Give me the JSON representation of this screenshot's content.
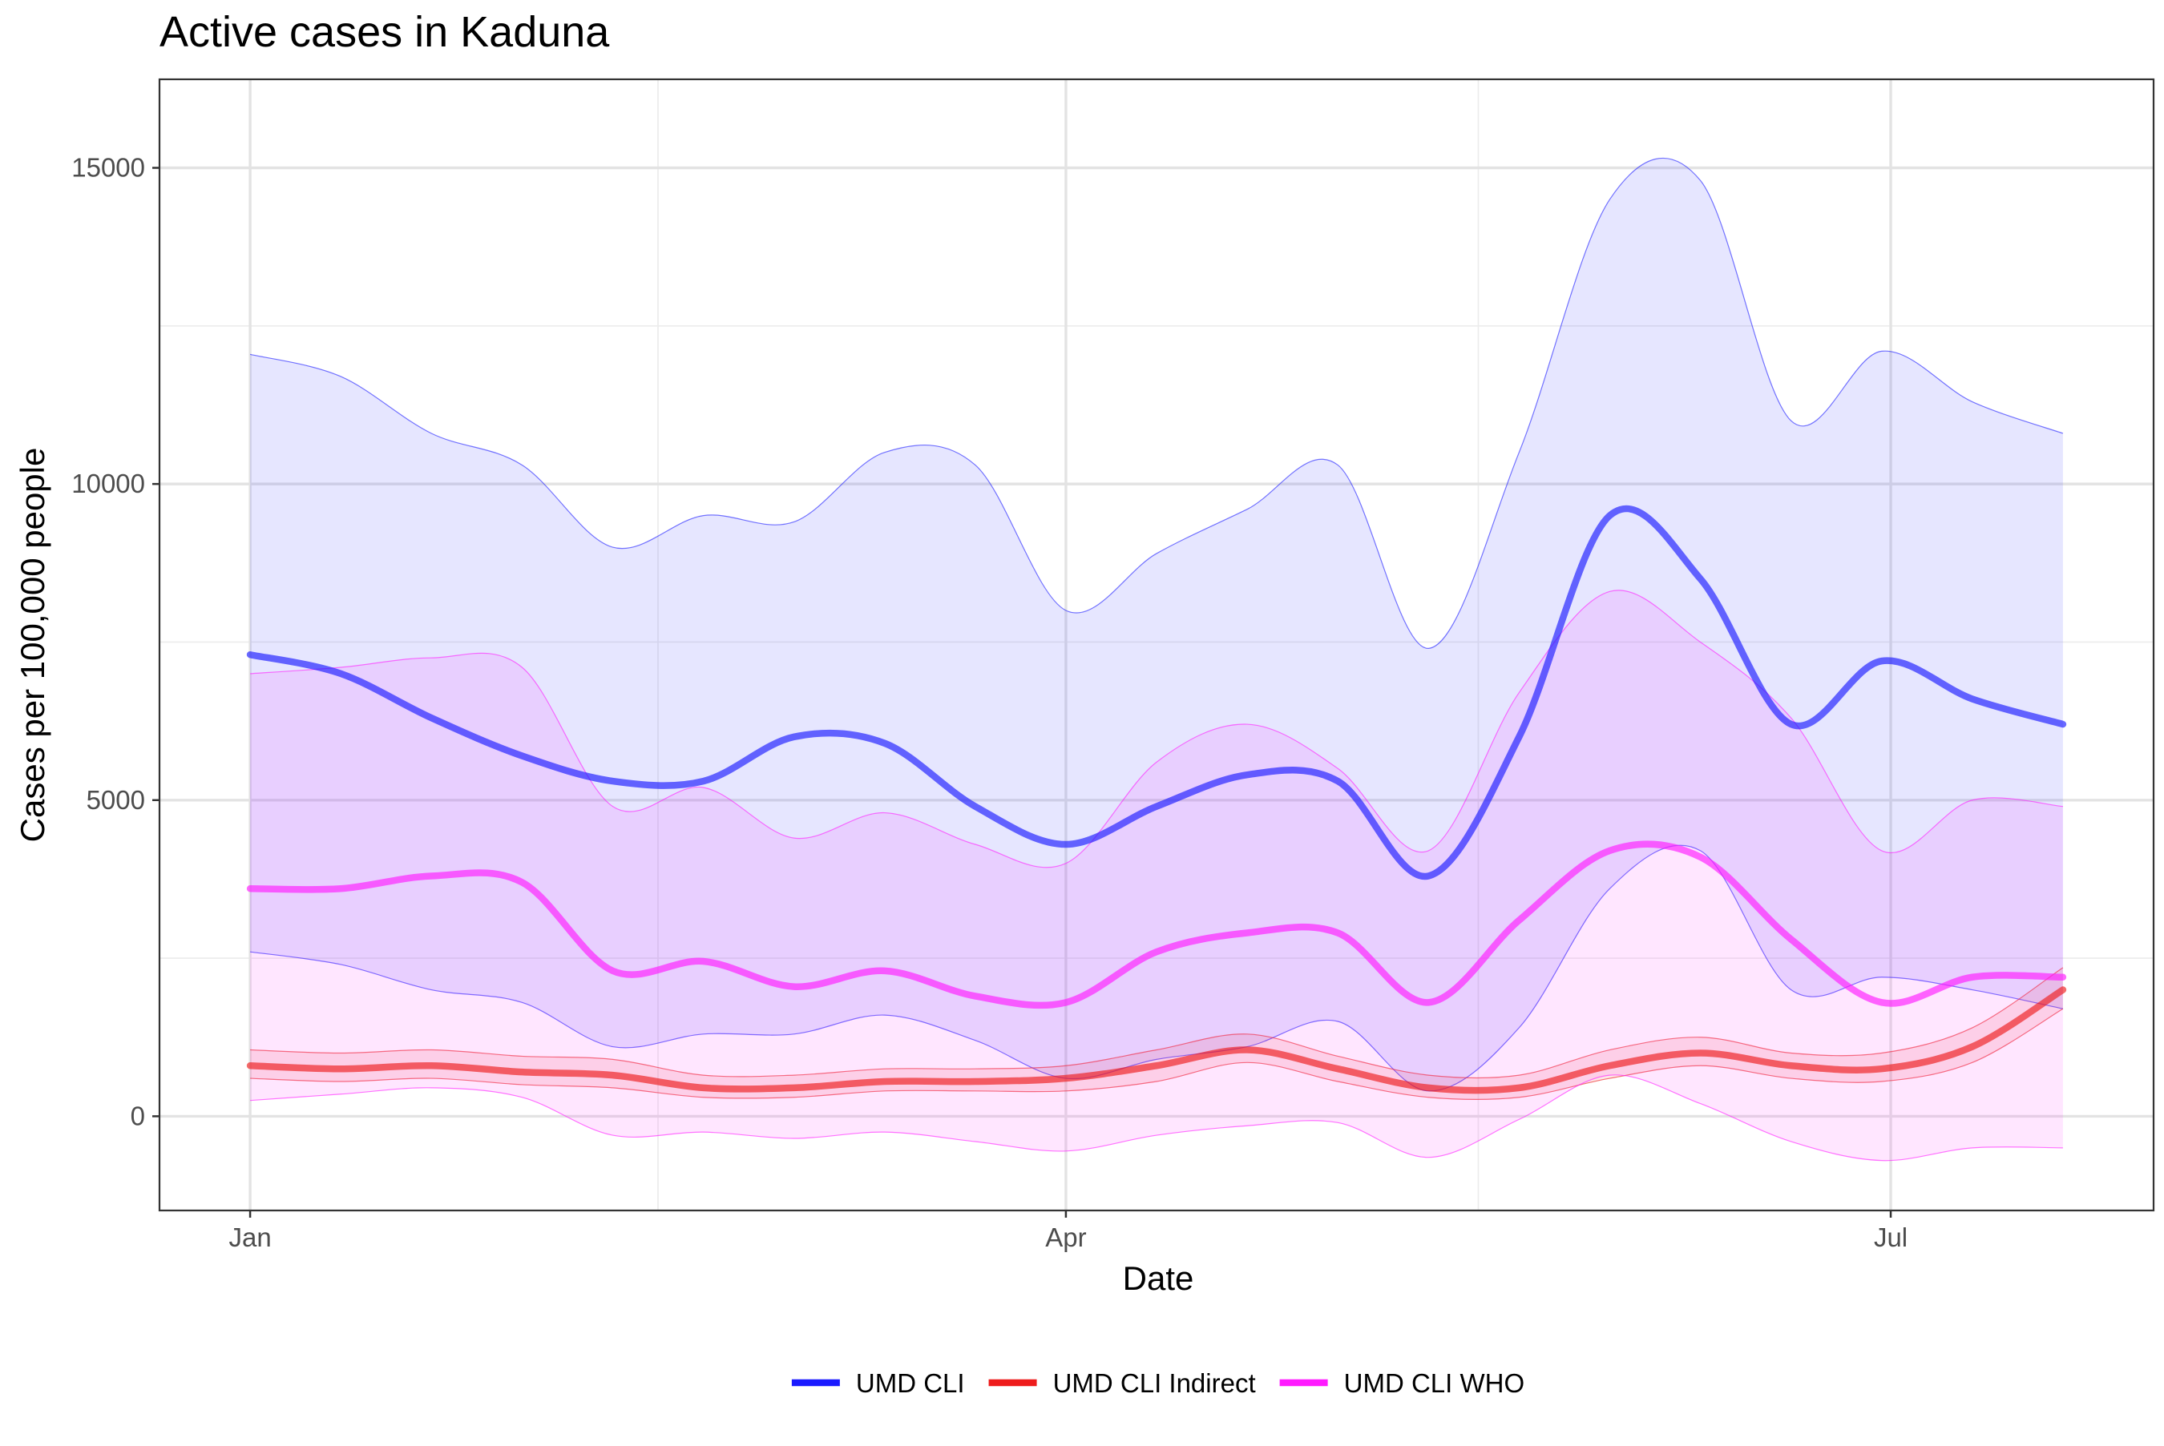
{
  "chart_data": {
    "type": "line",
    "title": "Active cases in Kaduna",
    "x_label": "Date",
    "y_label": "Cases per 100,000 people",
    "x": [
      0,
      10,
      20,
      30,
      40,
      50,
      60,
      70,
      80,
      90,
      100,
      110,
      120,
      130,
      140,
      150,
      160,
      170,
      180,
      190,
      200
    ],
    "xlim": [
      -10,
      210
    ],
    "xticks": [
      {
        "value": 0,
        "label": "Jan"
      },
      {
        "value": 90,
        "label": "Apr"
      },
      {
        "value": 181,
        "label": "Jul"
      }
    ],
    "ylim": [
      -1490,
      16400
    ],
    "yticks": [
      0,
      5000,
      10000,
      15000
    ],
    "grid": true,
    "legend": "bottom",
    "series": [
      {
        "name": "UMD CLI",
        "color": "#1a1aff",
        "values": [
          7300,
          7000,
          6300,
          5700,
          5300,
          5300,
          6000,
          5900,
          4900,
          4300,
          4900,
          5400,
          5300,
          3800,
          6000,
          9500,
          8500,
          6200,
          7200,
          6600,
          6200
        ],
        "upper": [
          12050,
          11700,
          10800,
          10300,
          9000,
          9500,
          9400,
          10500,
          10300,
          8000,
          8900,
          9600,
          10300,
          7400,
          10500,
          14500,
          14800,
          11000,
          12100,
          11300,
          10800
        ],
        "lower": [
          2600,
          2400,
          2000,
          1800,
          1100,
          1300,
          1300,
          1600,
          1200,
          600,
          900,
          1100,
          1500,
          400,
          1400,
          3600,
          4200,
          2000,
          2200,
          2000,
          1700
        ]
      },
      {
        "name": "UMD CLI Indirect",
        "color": "#ee1c1c",
        "values": [
          800,
          750,
          800,
          700,
          650,
          450,
          450,
          550,
          550,
          600,
          800,
          1050,
          750,
          450,
          450,
          800,
          1000,
          800,
          750,
          1100,
          2000
        ],
        "upper": [
          1050,
          1000,
          1050,
          950,
          900,
          650,
          650,
          750,
          750,
          800,
          1050,
          1300,
          950,
          650,
          650,
          1050,
          1250,
          1000,
          1000,
          1400,
          2350
        ],
        "lower": [
          600,
          550,
          600,
          500,
          450,
          300,
          300,
          400,
          400,
          400,
          550,
          850,
          550,
          300,
          300,
          600,
          800,
          600,
          550,
          850,
          1700
        ]
      },
      {
        "name": "UMD CLI WHO",
        "color": "#ff1aff",
        "values": [
          3600,
          3600,
          3800,
          3700,
          2300,
          2450,
          2050,
          2300,
          1900,
          1800,
          2600,
          2900,
          2900,
          1800,
          3100,
          4200,
          4100,
          2800,
          1800,
          2200,
          2200
        ],
        "upper": [
          7000,
          7100,
          7250,
          7100,
          4900,
          5200,
          4400,
          4800,
          4300,
          4000,
          5600,
          6200,
          5500,
          4200,
          6700,
          8300,
          7500,
          6300,
          4200,
          5000,
          4900
        ],
        "lower": [
          250,
          350,
          450,
          300,
          -300,
          -250,
          -350,
          -250,
          -400,
          -550,
          -300,
          -150,
          -100,
          -650,
          -50,
          650,
          200,
          -400,
          -700,
          -500,
          -500
        ]
      }
    ]
  }
}
